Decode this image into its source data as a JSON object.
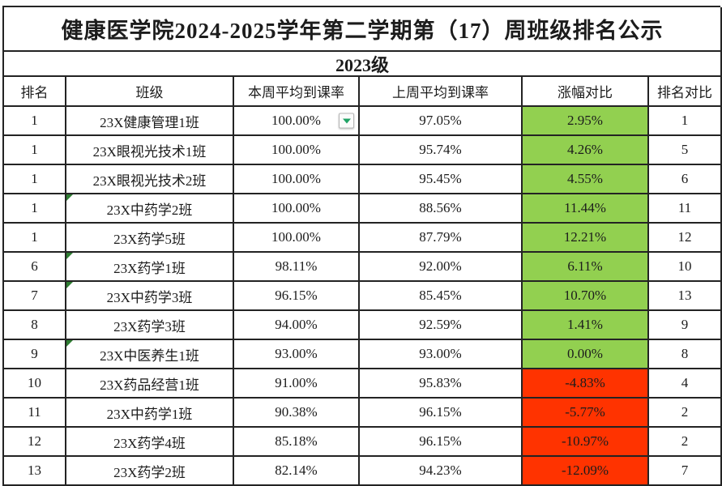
{
  "title": "健康医学院2024-2025学年第二学期第（17）周班级排名公示",
  "subtitle": "2023级",
  "table": {
    "headers": [
      "排名",
      "班级",
      "本周平均到课率",
      "上周平均到课率",
      "涨幅对比",
      "排名对比"
    ],
    "rows": [
      {
        "rank": "1",
        "class_name": "23X健康管理1班",
        "this_week": "100.00%",
        "last_week": "97.05%",
        "change": "2.95%",
        "rank_change": "1",
        "trend": "up",
        "has_dropdown": true,
        "corner_flag": false
      },
      {
        "rank": "1",
        "class_name": "23X眼视光技术1班",
        "this_week": "100.00%",
        "last_week": "95.74%",
        "change": "4.26%",
        "rank_change": "5",
        "trend": "up",
        "has_dropdown": false,
        "corner_flag": false
      },
      {
        "rank": "1",
        "class_name": "23X眼视光技术2班",
        "this_week": "100.00%",
        "last_week": "95.45%",
        "change": "4.55%",
        "rank_change": "6",
        "trend": "up",
        "has_dropdown": false,
        "corner_flag": false
      },
      {
        "rank": "1",
        "class_name": "23X中药学2班",
        "this_week": "100.00%",
        "last_week": "88.56%",
        "change": "11.44%",
        "rank_change": "11",
        "trend": "up",
        "has_dropdown": false,
        "corner_flag": true
      },
      {
        "rank": "1",
        "class_name": "23X药学5班",
        "this_week": "100.00%",
        "last_week": "87.79%",
        "change": "12.21%",
        "rank_change": "12",
        "trend": "up",
        "has_dropdown": false,
        "corner_flag": false
      },
      {
        "rank": "6",
        "class_name": "23X药学1班",
        "this_week": "98.11%",
        "last_week": "92.00%",
        "change": "6.11%",
        "rank_change": "10",
        "trend": "up",
        "has_dropdown": false,
        "corner_flag": true
      },
      {
        "rank": "7",
        "class_name": "23X中药学3班",
        "this_week": "96.15%",
        "last_week": "85.45%",
        "change": "10.70%",
        "rank_change": "13",
        "trend": "up",
        "has_dropdown": false,
        "corner_flag": true
      },
      {
        "rank": "8",
        "class_name": "23X药学3班",
        "this_week": "94.00%",
        "last_week": "92.59%",
        "change": "1.41%",
        "rank_change": "9",
        "trend": "up",
        "has_dropdown": false,
        "corner_flag": false
      },
      {
        "rank": "9",
        "class_name": "23X中医养生1班",
        "this_week": "93.00%",
        "last_week": "93.00%",
        "change": "0.00%",
        "rank_change": "8",
        "trend": "up",
        "has_dropdown": false,
        "corner_flag": true
      },
      {
        "rank": "10",
        "class_name": "23X药品经营1班",
        "this_week": "91.00%",
        "last_week": "95.83%",
        "change": "-4.83%",
        "rank_change": "4",
        "trend": "down",
        "has_dropdown": false,
        "corner_flag": false
      },
      {
        "rank": "11",
        "class_name": "23X中药学1班",
        "this_week": "90.38%",
        "last_week": "96.15%",
        "change": "-5.77%",
        "rank_change": "2",
        "trend": "down",
        "has_dropdown": false,
        "corner_flag": false
      },
      {
        "rank": "12",
        "class_name": "23X药学4班",
        "this_week": "85.18%",
        "last_week": "96.15%",
        "change": "-10.97%",
        "rank_change": "2",
        "trend": "down",
        "has_dropdown": false,
        "corner_flag": false
      },
      {
        "rank": "13",
        "class_name": "23X药学2班",
        "this_week": "82.14%",
        "last_week": "94.23%",
        "change": "-12.09%",
        "rank_change": "7",
        "trend": "down",
        "has_dropdown": false,
        "corner_flag": false
      }
    ]
  },
  "colors": {
    "positive_bg": "#92D050",
    "negative_bg": "#FF3300",
    "corner_flag": "#2E7D32",
    "dropdown_arrow": "#21A366",
    "grid_line": "#232323"
  },
  "icons": {
    "dropdown": "dropdown-arrow-icon",
    "corner_flag": "cell-flag-corner-icon"
  }
}
